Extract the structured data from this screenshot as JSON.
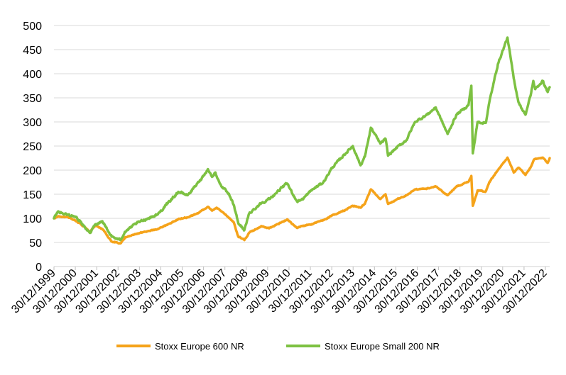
{
  "chart_data": {
    "type": "line",
    "grid": "horizontal",
    "legend_position": "bottom",
    "ylim": [
      0,
      500
    ],
    "y_ticks": [
      "0",
      "50",
      "100",
      "150",
      "200",
      "250",
      "300",
      "350",
      "400",
      "450",
      "500"
    ],
    "x_tick_labels": [
      "30/12/1999",
      "30/12/2000",
      "30/12/2001",
      "30/12/2002",
      "30/12/2003",
      "30/12/2004",
      "30/12/2005",
      "30/12/2006",
      "30/12/2007",
      "30/12/2008",
      "30/12/2009",
      "30/12/2010",
      "30/12/2011",
      "30/12/2012",
      "30/12/2013",
      "30/12/2014",
      "30/12/2015",
      "30/12/2016",
      "30/12/2017",
      "30/12/2018",
      "30/12/2019",
      "30/12/2020",
      "30/12/2021",
      "30/12/2022"
    ],
    "series": [
      {
        "name": "Stoxx Europe 600 NR",
        "color": "#F5A31A",
        "points": [
          [
            "1999-12-30",
            100
          ],
          [
            "2000-03-15",
            104
          ],
          [
            "2000-09-01",
            102
          ],
          [
            "2000-12-30",
            96
          ],
          [
            "2001-04-01",
            90
          ],
          [
            "2001-09-20",
            72
          ],
          [
            "2001-12-30",
            85
          ],
          [
            "2002-05-01",
            78
          ],
          [
            "2002-10-10",
            52
          ],
          [
            "2003-03-12",
            48
          ],
          [
            "2003-06-01",
            60
          ],
          [
            "2003-12-30",
            68
          ],
          [
            "2004-06-01",
            72
          ],
          [
            "2004-12-30",
            78
          ],
          [
            "2005-06-01",
            86
          ],
          [
            "2005-12-30",
            98
          ],
          [
            "2006-06-01",
            102
          ],
          [
            "2006-12-30",
            112
          ],
          [
            "2007-06-01",
            124
          ],
          [
            "2007-08-20",
            116
          ],
          [
            "2007-11-01",
            122
          ],
          [
            "2007-12-30",
            117
          ],
          [
            "2008-06-01",
            102
          ],
          [
            "2008-09-01",
            92
          ],
          [
            "2008-11-20",
            62
          ],
          [
            "2009-03-09",
            55
          ],
          [
            "2009-06-01",
            70
          ],
          [
            "2009-12-30",
            84
          ],
          [
            "2010-05-25",
            80
          ],
          [
            "2010-12-30",
            92
          ],
          [
            "2011-04-01",
            98
          ],
          [
            "2011-09-22",
            80
          ],
          [
            "2011-12-30",
            84
          ],
          [
            "2012-06-01",
            88
          ],
          [
            "2012-12-30",
            96
          ],
          [
            "2013-06-01",
            106
          ],
          [
            "2013-12-30",
            116
          ],
          [
            "2014-06-01",
            126
          ],
          [
            "2014-10-15",
            122
          ],
          [
            "2014-12-30",
            130
          ],
          [
            "2015-04-15",
            160
          ],
          [
            "2015-09-29",
            140
          ],
          [
            "2015-12-30",
            150
          ],
          [
            "2016-02-11",
            130
          ],
          [
            "2016-06-27",
            138
          ],
          [
            "2016-12-30",
            148
          ],
          [
            "2017-06-01",
            160
          ],
          [
            "2017-12-30",
            162
          ],
          [
            "2018-06-01",
            166
          ],
          [
            "2018-12-27",
            148
          ],
          [
            "2019-06-01",
            166
          ],
          [
            "2019-12-30",
            176
          ],
          [
            "2020-02-19",
            188
          ],
          [
            "2020-03-16",
            126
          ],
          [
            "2020-06-08",
            158
          ],
          [
            "2020-10-30",
            156
          ],
          [
            "2020-12-30",
            175
          ],
          [
            "2021-06-01",
            200
          ],
          [
            "2021-11-17",
            226
          ],
          [
            "2022-03-07",
            195
          ],
          [
            "2022-06-01",
            205
          ],
          [
            "2022-09-29",
            190
          ],
          [
            "2022-12-30",
            206
          ],
          [
            "2023-03-01",
            222
          ],
          [
            "2023-07-31",
            226
          ],
          [
            "2023-10-26",
            215
          ],
          [
            "2023-11-30",
            225
          ]
        ]
      },
      {
        "name": "Stoxx Europe Small 200 NR",
        "color": "#7DC142",
        "points": [
          [
            "1999-12-30",
            100
          ],
          [
            "2000-03-07",
            114
          ],
          [
            "2000-06-01",
            110
          ],
          [
            "2000-12-30",
            104
          ],
          [
            "2001-04-01",
            95
          ],
          [
            "2001-09-21",
            70
          ],
          [
            "2001-12-30",
            88
          ],
          [
            "2002-05-01",
            94
          ],
          [
            "2002-10-10",
            62
          ],
          [
            "2003-03-12",
            55
          ],
          [
            "2003-06-01",
            72
          ],
          [
            "2003-12-30",
            90
          ],
          [
            "2004-06-01",
            98
          ],
          [
            "2004-12-30",
            108
          ],
          [
            "2005-06-01",
            128
          ],
          [
            "2005-12-30",
            155
          ],
          [
            "2006-06-13",
            148
          ],
          [
            "2006-12-30",
            176
          ],
          [
            "2007-06-05",
            202
          ],
          [
            "2007-08-16",
            186
          ],
          [
            "2007-10-15",
            195
          ],
          [
            "2007-12-30",
            172
          ],
          [
            "2008-06-01",
            150
          ],
          [
            "2008-09-01",
            128
          ],
          [
            "2008-11-20",
            90
          ],
          [
            "2009-03-09",
            76
          ],
          [
            "2009-06-01",
            110
          ],
          [
            "2009-12-30",
            132
          ],
          [
            "2010-05-25",
            140
          ],
          [
            "2010-12-30",
            164
          ],
          [
            "2011-04-01",
            172
          ],
          [
            "2011-09-22",
            135
          ],
          [
            "2011-12-30",
            140
          ],
          [
            "2012-06-01",
            158
          ],
          [
            "2012-12-30",
            175
          ],
          [
            "2013-06-01",
            205
          ],
          [
            "2013-12-30",
            232
          ],
          [
            "2014-06-01",
            250
          ],
          [
            "2014-10-15",
            210
          ],
          [
            "2014-12-30",
            228
          ],
          [
            "2015-04-15",
            288
          ],
          [
            "2015-09-29",
            255
          ],
          [
            "2015-12-30",
            265
          ],
          [
            "2016-02-11",
            230
          ],
          [
            "2016-06-27",
            245
          ],
          [
            "2016-12-30",
            262
          ],
          [
            "2017-06-01",
            300
          ],
          [
            "2017-12-30",
            315
          ],
          [
            "2018-06-01",
            330
          ],
          [
            "2018-12-27",
            275
          ],
          [
            "2019-06-01",
            315
          ],
          [
            "2019-12-30",
            335
          ],
          [
            "2020-02-19",
            375
          ],
          [
            "2020-03-16",
            235
          ],
          [
            "2020-06-08",
            300
          ],
          [
            "2020-10-30",
            298
          ],
          [
            "2020-12-30",
            340
          ],
          [
            "2021-06-01",
            420
          ],
          [
            "2021-11-16",
            475
          ],
          [
            "2022-03-07",
            390
          ],
          [
            "2022-06-01",
            340
          ],
          [
            "2022-09-29",
            315
          ],
          [
            "2022-12-30",
            355
          ],
          [
            "2023-02-15",
            385
          ],
          [
            "2023-03-20",
            368
          ],
          [
            "2023-07-31",
            385
          ],
          [
            "2023-10-26",
            362
          ],
          [
            "2023-11-30",
            372
          ]
        ]
      }
    ]
  }
}
